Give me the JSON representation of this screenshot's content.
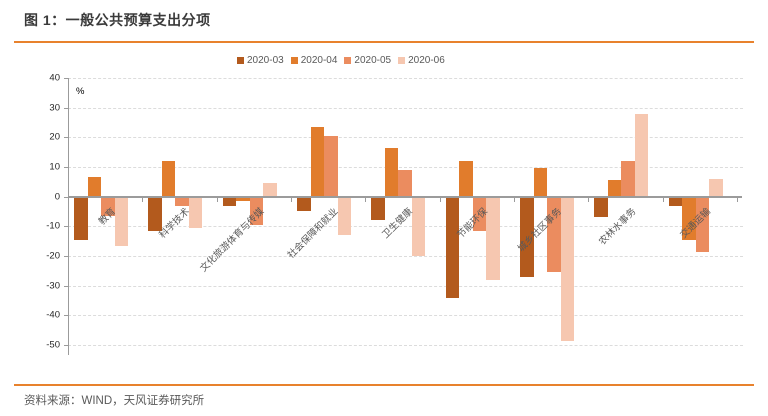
{
  "header": {
    "title": "图 1：一般公共预算支出分项"
  },
  "footer": {
    "source": "资料来源：WIND，天风证券研究所"
  },
  "chart_data": {
    "type": "bar",
    "title": "一般公共预算支出分项",
    "unit_label": "%",
    "categories": [
      "教育",
      "科学技术",
      "文化旅游体育与传媒",
      "社会保障和就业",
      "卫生健康",
      "节能环保",
      "城乡社区事务",
      "农林水事务",
      "交通运输"
    ],
    "series": [
      {
        "name": "2020-03",
        "color": "#b35a1d",
        "values": [
          -14.5,
          -11.5,
          -3,
          -5,
          -8,
          -34,
          -27,
          -7,
          -3
        ]
      },
      {
        "name": "2020-04",
        "color": "#e17c2c",
        "values": [
          6.5,
          12,
          -1.5,
          23.5,
          16.5,
          12,
          9.5,
          5.5,
          -14.5
        ]
      },
      {
        "name": "2020-05",
        "color": "#eb8c5f",
        "values": [
          -6.5,
          -3,
          -9.5,
          20.5,
          9,
          -11.5,
          -25.5,
          12,
          -18.5
        ]
      },
      {
        "name": "2020-06",
        "color": "#f6c7b0",
        "values": [
          -16.5,
          -10.5,
          4.5,
          -13,
          -20,
          -28,
          -48.5,
          28,
          6
        ]
      }
    ],
    "ylim": [
      -50,
      40
    ],
    "yticks": [
      40,
      30,
      20,
      10,
      0,
      -10,
      -20,
      -30,
      -40,
      -50
    ],
    "grid": "horizontal-dashed",
    "legend_position": "top-center"
  },
  "colors": {
    "accent_rule": "#e8822d",
    "axis": "#9b9b9b",
    "gridline": "#dcdcdc",
    "title_text": "#3a3a3a",
    "muted_text": "#595959"
  }
}
